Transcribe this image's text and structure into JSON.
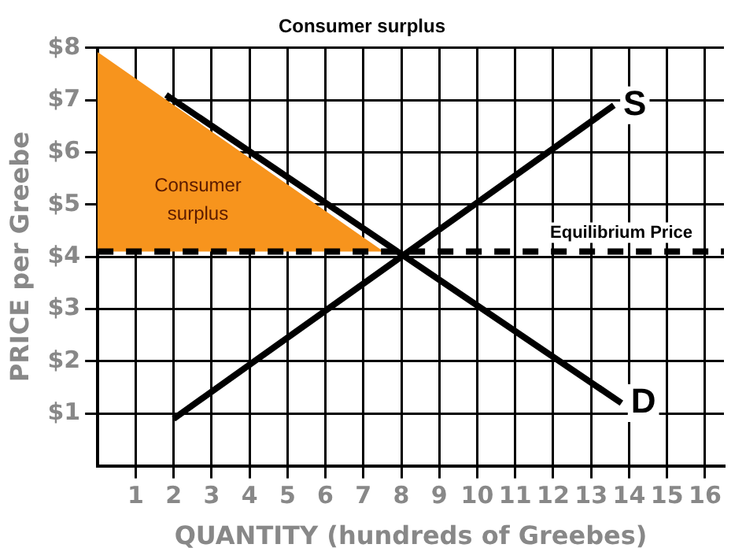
{
  "chart_data": {
    "type": "line",
    "title": "Consumer surplus",
    "xlabel": "QUANTITY (hundreds of Greebes)",
    "ylabel": "PRICE per Greebe",
    "series": [
      {
        "type": "area",
        "x": [
          0,
          0,
          7.5
        ],
        "values": [
          4.1,
          7.9,
          4.1
        ],
        "color": "#f7941d"
      },
      {
        "name": "D",
        "x": [
          1.8,
          13.8
        ],
        "values": [
          7.1,
          1.2
        ],
        "color": "#000000"
      },
      {
        "name": "S",
        "x": [
          2,
          13.6
        ],
        "values": [
          0.9,
          6.9
        ],
        "color": "#000000"
      }
    ],
    "xlim": [
      0,
      16.5
    ],
    "xticks": [
      1,
      2,
      3,
      4,
      5,
      6,
      7,
      8,
      9,
      10,
      11,
      12,
      13,
      14,
      15,
      16
    ],
    "ylim": [
      0,
      8
    ],
    "yticks": [
      {
        "value": 1,
        "label": "$1"
      },
      {
        "value": 2,
        "label": "$2"
      },
      {
        "value": 3,
        "label": "$3"
      },
      {
        "value": 4,
        "label": "$4"
      },
      {
        "value": 5,
        "label": "$5"
      },
      {
        "value": 6,
        "label": "$6"
      },
      {
        "value": 7,
        "label": "$7"
      },
      {
        "value": 8,
        "label": "$8"
      }
    ],
    "ref_lines": [
      {
        "axis": "y",
        "value": 4.1,
        "label": "Equilibrium Price",
        "line_style": "dashed",
        "color": "#000000"
      }
    ],
    "annotations": [
      "Consumer surplus"
    ],
    "grid": true,
    "legend": false,
    "marker": "none",
    "line_style": "solid"
  }
}
